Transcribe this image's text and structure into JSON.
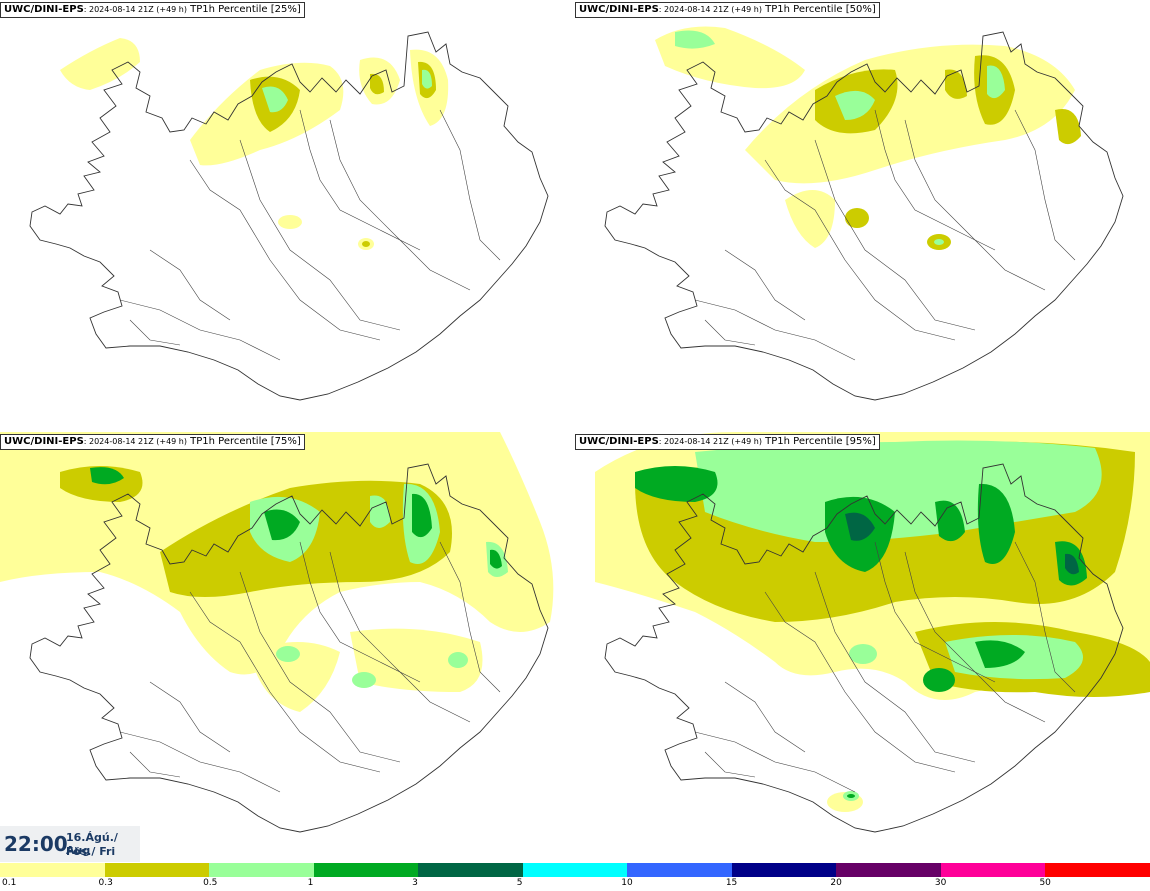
{
  "panels": [
    {
      "source": "UWC/DINI-EPS",
      "run": ": 2024-08-14 21Z (+49 h)",
      "variable": " TP1h Percentile [25%]"
    },
    {
      "source": "UWC/DINI-EPS",
      "run": ": 2024-08-14 21Z (+49 h)",
      "variable": " TP1h Percentile [50%]"
    },
    {
      "source": "UWC/DINI-EPS",
      "run": ": 2024-08-14 21Z (+49 h)",
      "variable": " TP1h Percentile [75%]"
    },
    {
      "source": "UWC/DINI-EPS",
      "run": ": 2024-08-14 21Z (+49 h)",
      "variable": " TP1h Percentile [95%]"
    }
  ],
  "valid_time": {
    "time": "22:00",
    "date": "16.Ágú./ Aug",
    "weekday": "Fös./ Fri"
  },
  "legend": {
    "colors": [
      "#ffff99",
      "#cccc00",
      "#99ff99",
      "#00aa22",
      "#006644",
      "#00ffff",
      "#3366ff",
      "#000088",
      "#660066",
      "#ff0099",
      "#ff0000"
    ],
    "labels": [
      "0.1",
      "0.3",
      "0.5",
      "1",
      "3",
      "5",
      "10",
      "15",
      "20",
      "30",
      "50"
    ]
  }
}
